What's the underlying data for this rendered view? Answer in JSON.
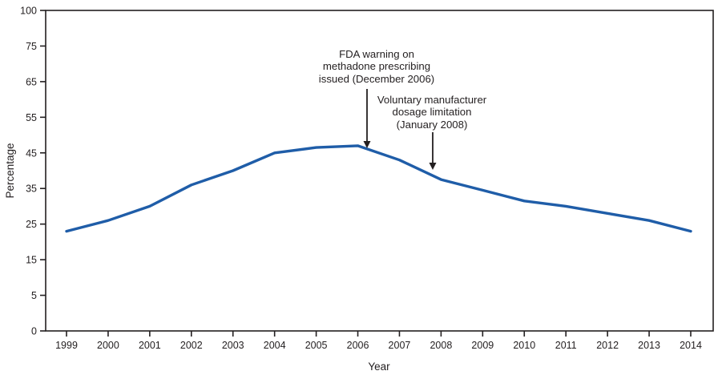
{
  "chart": {
    "title": "",
    "y_axis_title": "Percentage",
    "x_axis_title": "Year"
  },
  "chart_data": {
    "type": "line",
    "title": "",
    "xlabel": "Year",
    "ylabel": "Percentage",
    "x": [
      1999,
      2000,
      2001,
      2002,
      2003,
      2004,
      2005,
      2006,
      2007,
      2008,
      2009,
      2010,
      2011,
      2012,
      2013,
      2014
    ],
    "series": [
      {
        "name": "Percentage",
        "values": [
          23,
          26,
          30,
          36,
          40,
          45,
          46.5,
          47,
          43,
          37.5,
          34.5,
          31.5,
          30,
          28,
          26,
          23
        ]
      }
    ],
    "y_ticks": [
      0,
      5,
      15,
      25,
      35,
      45,
      55,
      65,
      75,
      100
    ],
    "y_axis_note": "tick labels evenly spaced with unequal increments (0,5,15,...,75,100)",
    "xlim": [
      1999,
      2014
    ],
    "grid": false,
    "legend": "none",
    "line_color": "#1f5da8",
    "axis_color": "#231f20",
    "line_width": 3.4,
    "annotations": [
      {
        "id": "fda-warning",
        "lines": [
          "FDA warning on",
          "methadone prescribing",
          "issued (December 2006)"
        ],
        "points_to": {
          "x": 2006.2,
          "y": 46.5
        }
      },
      {
        "id": "dosage-limitation",
        "lines": [
          "Voluntary manufacturer",
          "dosage limitation",
          "(January 2008)"
        ],
        "points_to": {
          "x": 2007.8,
          "y": 38.5
        }
      }
    ]
  }
}
